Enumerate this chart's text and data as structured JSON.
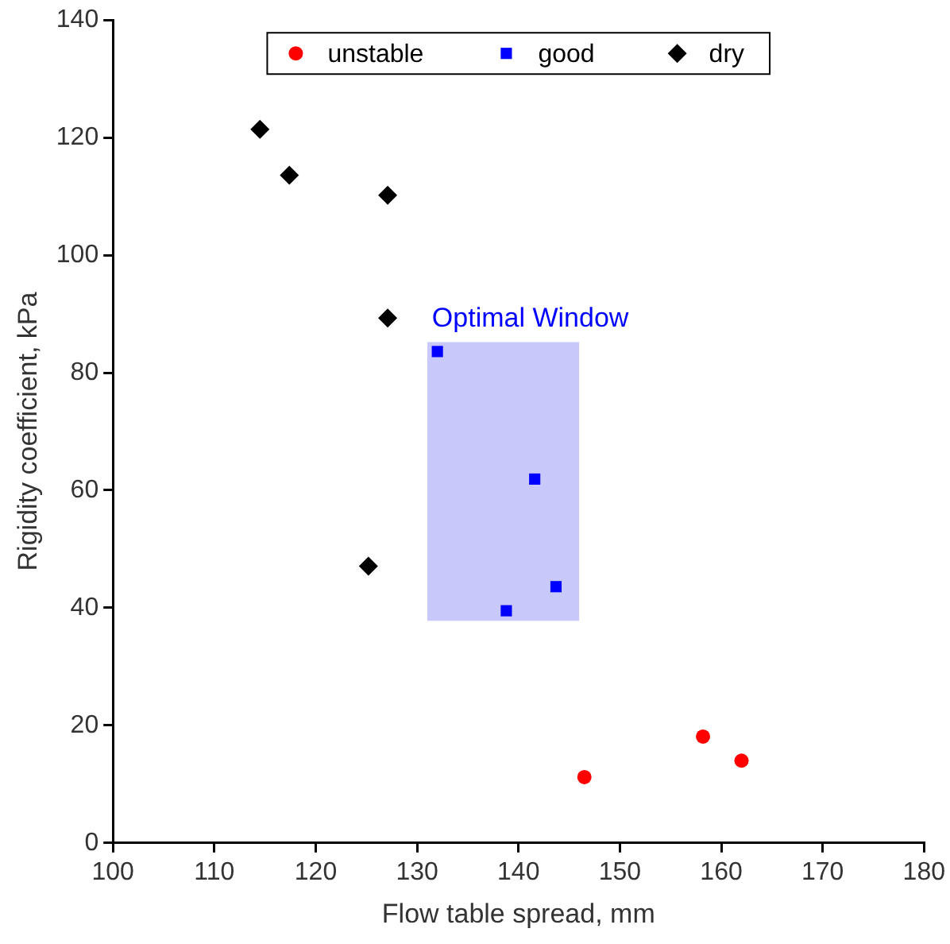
{
  "chart_data": {
    "type": "scatter",
    "xlabel": "Flow table spread, mm",
    "ylabel": "Rigidity coefficient, kPa",
    "xlim": [
      100,
      180
    ],
    "xticks": [
      100,
      110,
      120,
      130,
      140,
      150,
      160,
      170,
      180
    ],
    "ylim": [
      0,
      140
    ],
    "yticks": [
      0,
      20,
      40,
      60,
      80,
      100,
      120,
      140
    ],
    "grid": false,
    "legend": "top",
    "annotations": [
      {
        "text": "Optimal Window",
        "x": 131,
        "y": 85.2
      }
    ],
    "series": [
      {
        "type": "line",
        "color": "#c8c8fa",
        "x": [
          131,
          146
        ],
        "values": [
          null,
          null
        ],
        "lower": [
          37.8,
          37.8
        ],
        "upper": [
          85.2,
          85.2
        ]
      },
      {
        "name": "unstable",
        "color": "#ff0000",
        "marker": "circle",
        "x": [
          146.5,
          158.2,
          162
        ],
        "values": [
          11.2,
          18.1,
          14
        ]
      },
      {
        "name": "good",
        "color": "#0000ff",
        "marker": "square",
        "x": [
          132,
          141.6,
          138.8,
          143.7
        ],
        "values": [
          83.6,
          61.9,
          39.5,
          43.6
        ]
      },
      {
        "name": "dry",
        "color": "#000000",
        "marker": "diamond",
        "x": [
          114.5,
          117.4,
          127.1,
          127.1,
          125.2
        ],
        "values": [
          121.4,
          113.6,
          110.2,
          89.3,
          47.1
        ]
      }
    ]
  }
}
